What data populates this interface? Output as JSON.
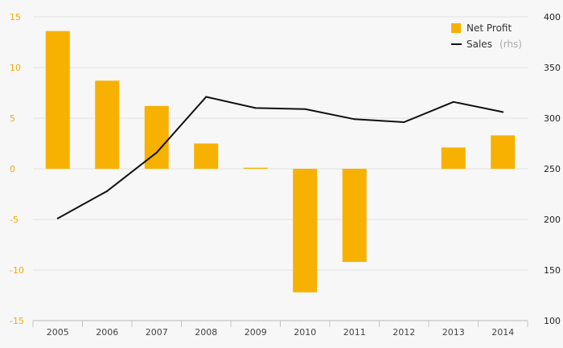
{
  "chart_data": {
    "type": "bar",
    "categories": [
      "2005",
      "2006",
      "2007",
      "2008",
      "2009",
      "2010",
      "2011",
      "2012",
      "2013",
      "2014"
    ],
    "series": [
      {
        "name": "Net Profit",
        "type": "bar",
        "axis": "left",
        "color": "#f7b100",
        "values": [
          13.6,
          8.7,
          6.2,
          2.5,
          0.1,
          -12.2,
          -9.2,
          0,
          2.1,
          3.3
        ]
      },
      {
        "name": "Sales",
        "type": "line",
        "axis": "right",
        "color": "#111111",
        "values": [
          201,
          228,
          266,
          321,
          310,
          309,
          299,
          296,
          316,
          306
        ]
      }
    ],
    "ylim_left": [
      -15,
      15
    ],
    "yticks_left": [
      "15",
      "10",
      "5",
      "0",
      "-5",
      "-10",
      "-15"
    ],
    "ylim_right": [
      100,
      400
    ],
    "yticks_right": [
      "400",
      "350",
      "300",
      "250",
      "200",
      "150",
      "100"
    ],
    "legend": {
      "position": "top-right",
      "entries": [
        {
          "label": "Net Profit",
          "note": ""
        },
        {
          "label": "Sales",
          "note": "(rhs)"
        }
      ]
    },
    "grid": true
  }
}
